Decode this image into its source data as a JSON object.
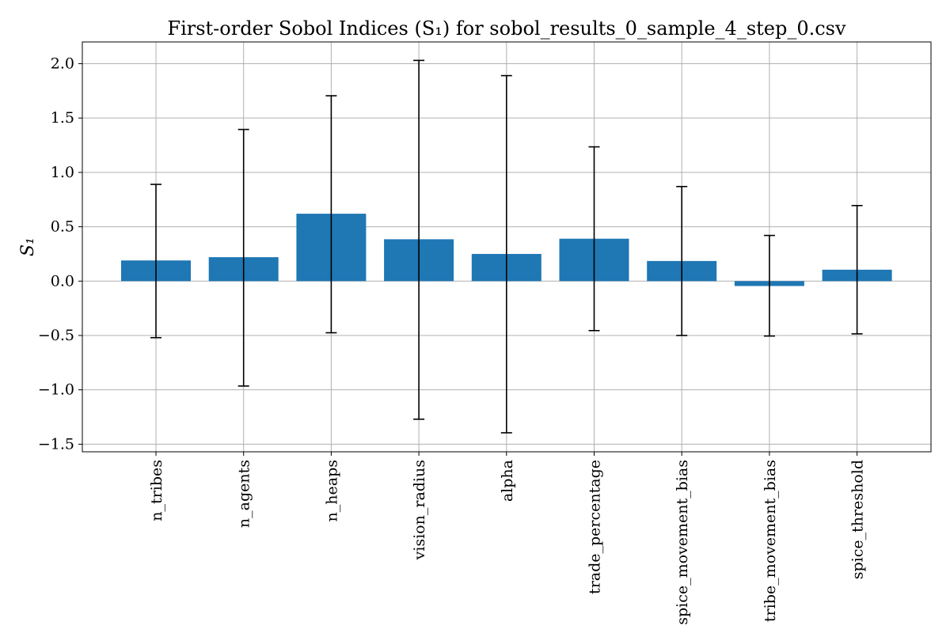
{
  "chart_data": {
    "type": "bar",
    "title": "First-order Sobol Indices (S₁) for sobol_results_0_sample_4_step_0.csv",
    "ylabel": "S₁",
    "xlabel": "",
    "categories": [
      "n_tribes",
      "n_agents",
      "n_heaps",
      "vision_radius",
      "alpha",
      "trade_percentage",
      "spice_movement_bias",
      "tribe_movement_bias",
      "spice_threshold"
    ],
    "values": [
      0.19,
      0.22,
      0.62,
      0.385,
      0.25,
      0.39,
      0.185,
      -0.045,
      0.105
    ],
    "error_low": [
      -0.52,
      -0.965,
      -0.475,
      -1.27,
      -1.395,
      -0.455,
      -0.5,
      -0.505,
      -0.485
    ],
    "error_high": [
      0.89,
      1.395,
      1.705,
      2.03,
      1.89,
      1.235,
      0.87,
      0.42,
      0.695
    ],
    "yticks": [
      "−1.5",
      "−1.0",
      "−0.5",
      "0.0",
      "0.5",
      "1.0",
      "1.5",
      "2.0"
    ],
    "ylim": [
      -1.57,
      2.2
    ],
    "grid": true,
    "bar_color": "#1f77b4"
  }
}
